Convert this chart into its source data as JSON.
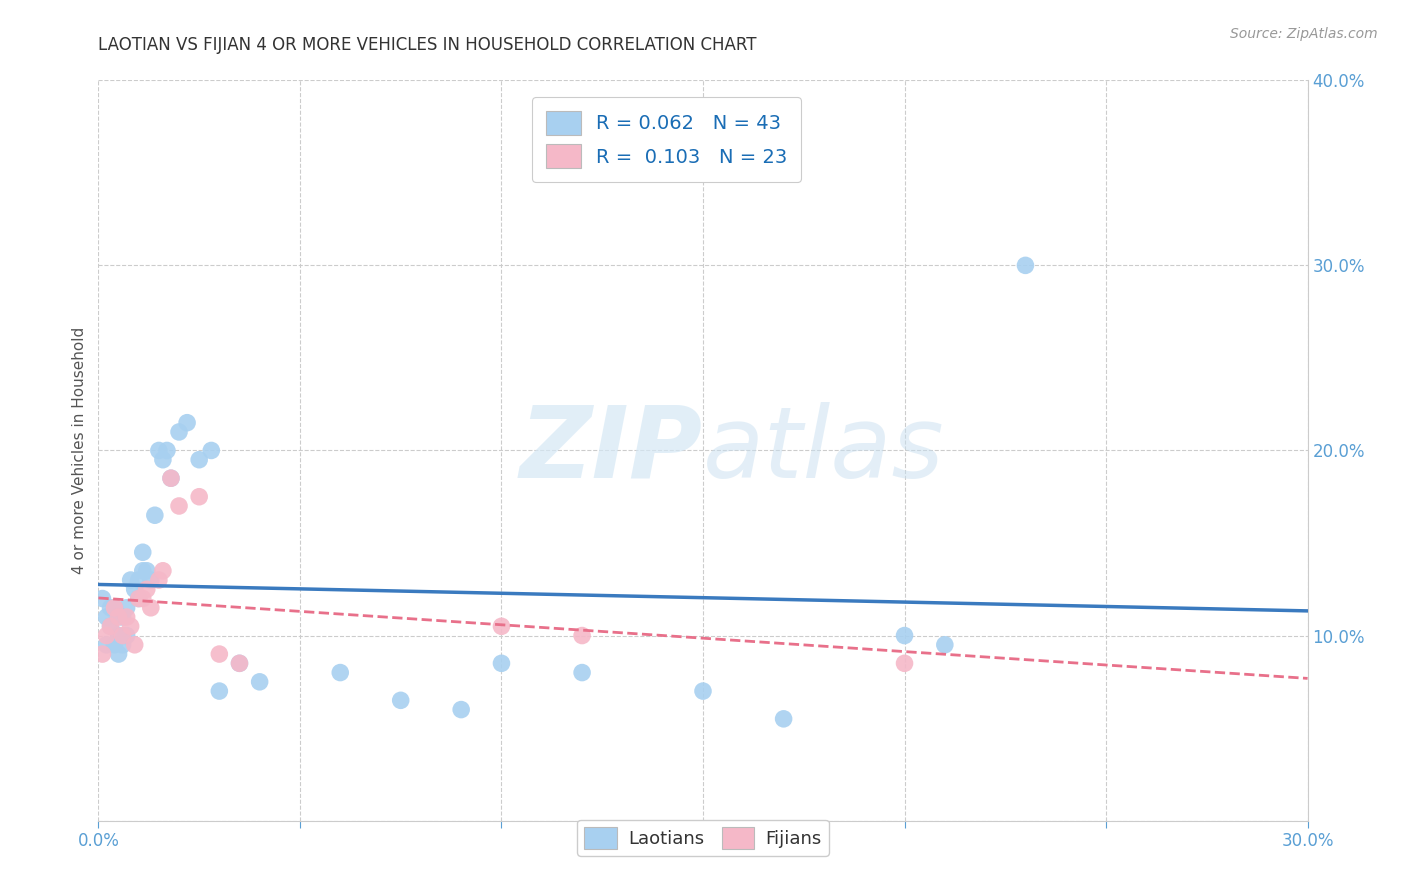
{
  "title": "LAOTIAN VS FIJIAN 4 OR MORE VEHICLES IN HOUSEHOLD CORRELATION CHART",
  "source": "Source: ZipAtlas.com",
  "ylabel_label": "4 or more Vehicles in Household",
  "xlim": [
    0.0,
    0.3
  ],
  "ylim": [
    0.0,
    0.4
  ],
  "laotian_x": [
    0.001,
    0.002,
    0.002,
    0.003,
    0.003,
    0.004,
    0.004,
    0.005,
    0.005,
    0.006,
    0.006,
    0.007,
    0.007,
    0.008,
    0.009,
    0.01,
    0.01,
    0.011,
    0.011,
    0.012,
    0.013,
    0.014,
    0.015,
    0.016,
    0.017,
    0.018,
    0.02,
    0.022,
    0.025,
    0.028,
    0.03,
    0.035,
    0.04,
    0.06,
    0.075,
    0.09,
    0.1,
    0.12,
    0.15,
    0.17,
    0.2,
    0.21,
    0.23
  ],
  "laotian_y": [
    0.12,
    0.11,
    0.095,
    0.115,
    0.105,
    0.115,
    0.095,
    0.09,
    0.1,
    0.11,
    0.095,
    0.115,
    0.1,
    0.13,
    0.125,
    0.13,
    0.12,
    0.135,
    0.145,
    0.135,
    0.13,
    0.165,
    0.2,
    0.195,
    0.2,
    0.185,
    0.21,
    0.215,
    0.195,
    0.2,
    0.07,
    0.085,
    0.075,
    0.08,
    0.065,
    0.06,
    0.085,
    0.08,
    0.07,
    0.055,
    0.1,
    0.095,
    0.3
  ],
  "fijian_x": [
    0.001,
    0.002,
    0.003,
    0.004,
    0.005,
    0.006,
    0.007,
    0.008,
    0.009,
    0.01,
    0.011,
    0.012,
    0.013,
    0.015,
    0.016,
    0.018,
    0.02,
    0.025,
    0.03,
    0.035,
    0.1,
    0.12,
    0.2
  ],
  "fijian_y": [
    0.09,
    0.1,
    0.105,
    0.115,
    0.11,
    0.1,
    0.11,
    0.105,
    0.095,
    0.12,
    0.12,
    0.125,
    0.115,
    0.13,
    0.135,
    0.185,
    0.17,
    0.175,
    0.09,
    0.085,
    0.105,
    0.1,
    0.085
  ],
  "laotian_color": "#a8d0f0",
  "fijian_color": "#f5b8c8",
  "laotian_line_color": "#3a7abf",
  "fijian_line_color": "#e8708a",
  "watermark_zip": "ZIP",
  "watermark_atlas": "atlas",
  "legend_r1": "R = 0.062   N = 43",
  "legend_r2": "R =  0.103   N = 23",
  "background_color": "#ffffff",
  "grid_color": "#cccccc",
  "tick_color": "#5a9fd4",
  "title_color": "#333333",
  "ylabel_color": "#555555"
}
